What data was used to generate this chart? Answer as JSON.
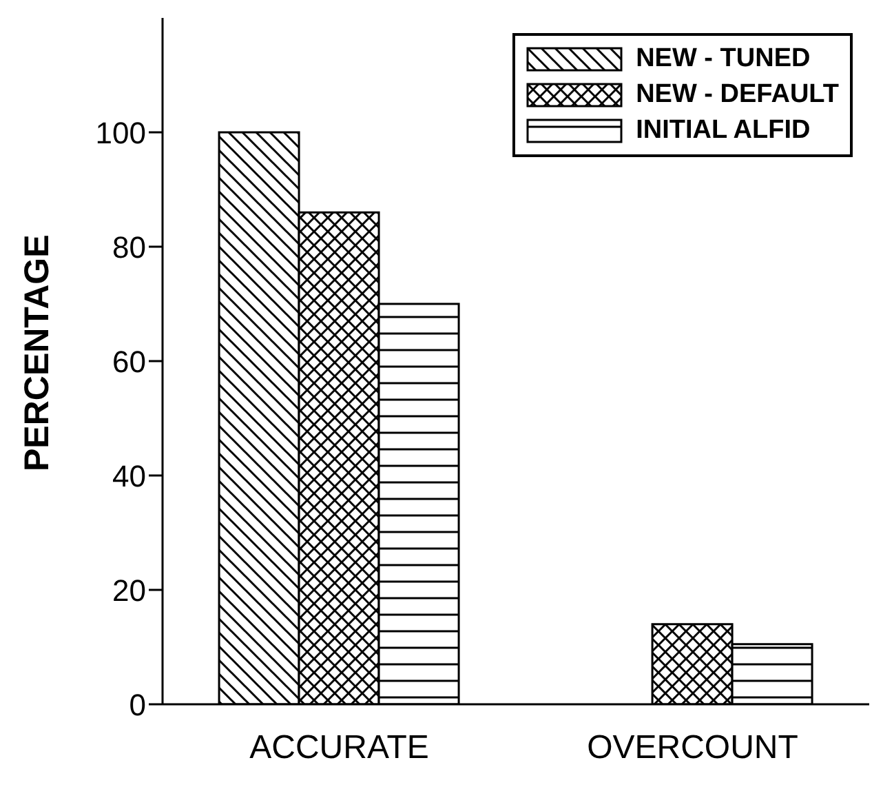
{
  "chart_data": {
    "type": "bar",
    "ylabel": "PERCENTAGE",
    "categories": [
      "ACCURATE",
      "OVERCOUNT"
    ],
    "series": [
      {
        "name": "NEW - TUNED",
        "color": "#000000",
        "values": [
          100,
          0
        ]
      },
      {
        "name": "NEW - DEFAULT",
        "color": "#000000",
        "values": [
          86,
          14
        ]
      },
      {
        "name": "INITIAL ALFID",
        "color": "#000000",
        "values": [
          70,
          10.5
        ]
      }
    ],
    "ylim": [
      0,
      120
    ],
    "yticks": [
      0,
      20,
      40,
      60,
      80,
      100
    ],
    "grid": false,
    "legend": "top right"
  }
}
